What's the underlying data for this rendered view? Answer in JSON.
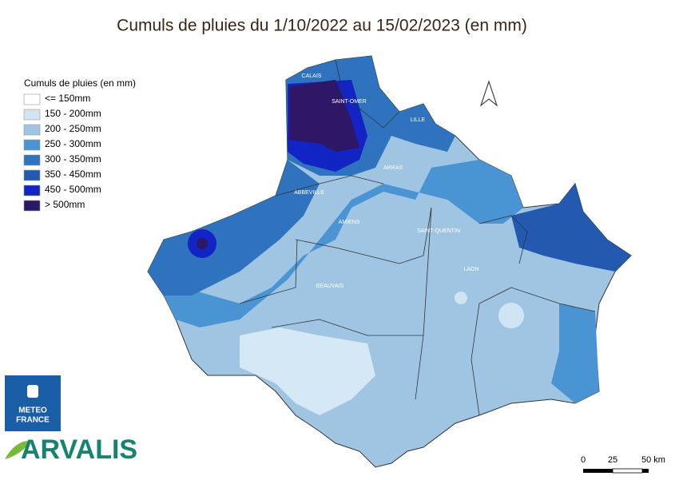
{
  "title": "Cumuls de pluies du 1/10/2022 au 15/02/2023 (en mm)",
  "legend": {
    "title": "Cumuls de pluies (en mm)",
    "items": [
      {
        "label": "<= 150mm",
        "color": "#ffffff"
      },
      {
        "label": "150 - 200mm",
        "color": "#cfe5f3"
      },
      {
        "label": "200 - 250mm",
        "color": "#9fc5e3"
      },
      {
        "label": "250 - 300mm",
        "color": "#4a94d3"
      },
      {
        "label": "300 - 350mm",
        "color": "#2f72bd"
      },
      {
        "label": "350 - 450mm",
        "color": "#2459b0"
      },
      {
        "label": "450 - 500mm",
        "color": "#1224c4"
      },
      {
        "label": "> 500mm",
        "color": "#2e1766"
      }
    ]
  },
  "cities": [
    "CALAIS",
    "SAINT-OMER",
    "LILLE",
    "ARRAS",
    "ABBEVILLE",
    "AMIENS",
    "SAINT-QUENTIN",
    "LAON",
    "BEAUVAIS"
  ],
  "scale": {
    "labels": [
      "0",
      "25",
      "50 km"
    ]
  },
  "logos": {
    "meteo": [
      "METEO",
      "FRANCE"
    ],
    "arvalis": "ARVALIS"
  }
}
